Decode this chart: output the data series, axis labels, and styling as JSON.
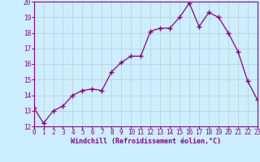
{
  "x": [
    0,
    1,
    2,
    3,
    4,
    5,
    6,
    7,
    8,
    9,
    10,
    11,
    12,
    13,
    14,
    15,
    16,
    17,
    18,
    19,
    20,
    21,
    22,
    23
  ],
  "y": [
    13.2,
    12.2,
    13.0,
    13.3,
    14.0,
    14.3,
    14.4,
    14.3,
    15.5,
    16.1,
    16.5,
    16.5,
    18.1,
    18.3,
    18.3,
    19.0,
    19.9,
    18.4,
    19.3,
    19.0,
    18.0,
    16.8,
    14.9,
    13.7
  ],
  "xlim": [
    0,
    23
  ],
  "ylim": [
    12,
    20
  ],
  "yticks": [
    12,
    13,
    14,
    15,
    16,
    17,
    18,
    19,
    20
  ],
  "xticks": [
    0,
    1,
    2,
    3,
    4,
    5,
    6,
    7,
    8,
    9,
    10,
    11,
    12,
    13,
    14,
    15,
    16,
    17,
    18,
    19,
    20,
    21,
    22,
    23
  ],
  "xlabel": "Windchill (Refroidissement éolien,°C)",
  "line_color": "#880088",
  "marker": "+",
  "marker_size": 4,
  "bg_color": "#cceeff",
  "grid_color": "#bbcccc",
  "tick_fontsize": 5.5,
  "xlabel_fontsize": 6.0
}
